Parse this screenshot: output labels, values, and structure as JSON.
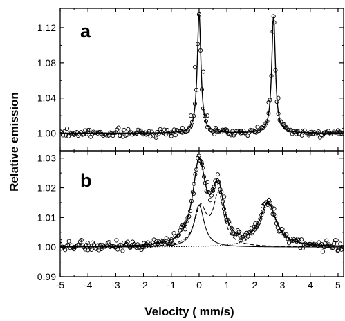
{
  "chart_data": [
    {
      "panel": "a",
      "type": "scatter",
      "panel_label": "a",
      "xlim": [
        -5,
        5.2
      ],
      "ylim": [
        0.98,
        1.142
      ],
      "yticks": [
        1.0,
        1.04,
        1.08,
        1.12
      ],
      "ytick_labels": [
        "1.00",
        "1.04",
        "1.08",
        "1.12"
      ],
      "grid": false,
      "series": [
        {
          "kind": "points",
          "marker": "open-circle",
          "description_peaks": [
            0.0,
            2.68
          ],
          "x": [
            -5.0,
            -4.5,
            -4.0,
            -3.5,
            -3.0,
            -2.5,
            -2.0,
            -1.5,
            -1.0,
            -0.6,
            -0.3,
            -0.15,
            0.0,
            0.15,
            0.3,
            0.6,
            1.0,
            1.5,
            2.0,
            2.3,
            2.5,
            2.68,
            2.85,
            3.1,
            3.5,
            4.0,
            4.5,
            5.0
          ],
          "y": [
            0.999,
            1.0,
            1.001,
            0.999,
            1.001,
            1.0,
            1.0,
            1.001,
            1.001,
            1.006,
            1.02,
            1.075,
            1.135,
            1.07,
            1.02,
            1.006,
            1.002,
            1.0,
            1.002,
            1.006,
            1.035,
            1.133,
            1.04,
            1.008,
            1.002,
            1.001,
            1.0,
            1.0
          ]
        },
        {
          "kind": "fit-line",
          "style": "solid",
          "peaks": [
            {
              "center": 0.0,
              "amplitude": 0.136,
              "hwhm": 0.08
            },
            {
              "center": 2.68,
              "amplitude": 0.133,
              "hwhm": 0.08
            }
          ],
          "baseline": 1.0
        }
      ]
    },
    {
      "panel": "b",
      "type": "scatter",
      "panel_label": "b",
      "xlim": [
        -5,
        5.2
      ],
      "ylim": [
        0.99,
        1.0325
      ],
      "yticks": [
        0.99,
        1.0,
        1.01,
        1.02,
        1.03
      ],
      "ytick_labels": [
        "0.99",
        "1.00",
        "1.01",
        "1.02",
        "1.03"
      ],
      "xticks": [
        -5,
        -4,
        -3,
        -2,
        -1,
        0,
        1,
        2,
        3,
        4,
        5
      ],
      "xtick_labels": [
        "-5",
        "-4",
        "-3",
        "-2",
        "-1",
        "0",
        "1",
        "2",
        "3",
        "4",
        "5"
      ],
      "grid": false,
      "series": [
        {
          "kind": "points",
          "marker": "open-circle",
          "x": [
            -5.0,
            -4.5,
            -4.0,
            -3.5,
            -3.0,
            -2.5,
            -2.0,
            -1.5,
            -1.0,
            -0.5,
            -0.2,
            0.0,
            0.1,
            0.3,
            0.5,
            0.7,
            0.9,
            1.2,
            1.5,
            2.0,
            2.3,
            2.5,
            2.7,
            3.0,
            3.5,
            4.0,
            4.5,
            5.0
          ],
          "y": [
            1.002,
            1.0,
            0.999,
            1.0,
            1.0,
            1.0,
            1.0,
            1.001,
            1.002,
            1.006,
            1.018,
            1.029,
            1.028,
            1.022,
            1.019,
            1.022,
            1.017,
            1.006,
            1.003,
            1.006,
            1.012,
            1.015,
            1.013,
            1.006,
            1.002,
            1.001,
            1.0,
            0.999
          ]
        },
        {
          "kind": "fit-line",
          "style": "solid",
          "peaks": [
            {
              "center": 0.0,
              "amplitude": 0.0277,
              "hwhm": 0.28
            },
            {
              "center": 0.68,
              "amplitude": 0.0185,
              "hwhm": 0.25
            },
            {
              "center": 2.48,
              "amplitude": 0.0145,
              "hwhm": 0.35
            }
          ],
          "baseline": 1.0
        },
        {
          "kind": "component",
          "style": "solid",
          "peaks": [
            {
              "center": 0.0,
              "amplitude": 0.0142,
              "hwhm": 0.22
            }
          ],
          "baseline": 1.0
        },
        {
          "kind": "component",
          "style": "dashed",
          "peaks": [
            {
              "center": 0.05,
              "amplitude": 0.0127,
              "hwhm": 0.26
            },
            {
              "center": 0.7,
              "amplitude": 0.017,
              "hwhm": 0.23
            }
          ],
          "baseline": 1.0
        },
        {
          "kind": "component",
          "style": "dotted",
          "peaks": [
            {
              "center": 2.48,
              "amplitude": 0.0145,
              "hwhm": 0.35
            }
          ],
          "baseline": 1.0,
          "tail_offset": 0.003
        }
      ]
    }
  ],
  "xlabel": "Velocity ( mm/s)",
  "ylabel": "Relative emission"
}
